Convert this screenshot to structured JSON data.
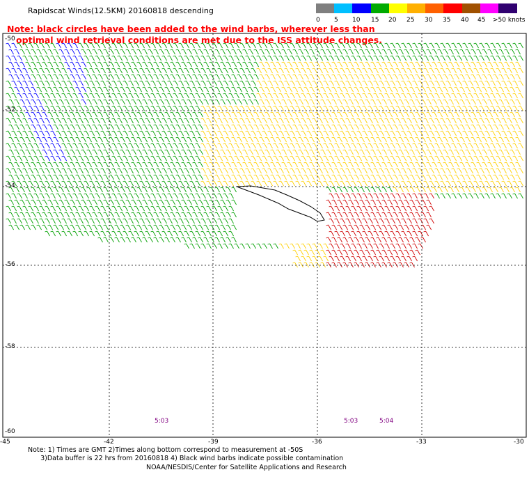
{
  "title": "Rapidscat Winds(12.5KM) 20160818 descending",
  "note_lines": [
    "Note: black circles have been added to the wind barbs, wherever less than",
    "   optimal wind retrieval conditions are met due to the ISS attitude changes."
  ],
  "legend": {
    "labels": [
      "0",
      "5",
      "10",
      "15",
      "20",
      "25",
      "30",
      "35",
      "40",
      "45",
      ">50 knots"
    ],
    "colors": [
      "#7f7f7f",
      "#00bfff",
      "#0000ff",
      "#00aa00",
      "#ffff00",
      "#ffb000",
      "#ff6000",
      "#ff0000",
      "#a05000",
      "#ff00ff",
      "#300070"
    ]
  },
  "axes": {
    "lon_ticks": [
      "-45",
      "-42",
      "-39",
      "-36",
      "-33",
      "-30"
    ],
    "lat_ticks": [
      "-50",
      "-52",
      "-54",
      "-56",
      "-58",
      "-60"
    ]
  },
  "time_labels": [
    "5:03",
    "5:03",
    "5:04"
  ],
  "footer_lines": [
    "Note: 1) Times are GMT 2)Times along bottom correspond to measurement at -50S",
    "      3)Data buffer is 22 hrs from 20160818 4) Black wind barbs indicate possible contamination"
  ],
  "credit": "NOAA/NESDIS/Center for Satellite Applications and Research",
  "colors": {
    "light_wind": "#00a000",
    "calm_wind": "#0000ff",
    "moderate_wind": "#ffd000",
    "strong_wind": "#d00000",
    "flagged": "#000000"
  }
}
